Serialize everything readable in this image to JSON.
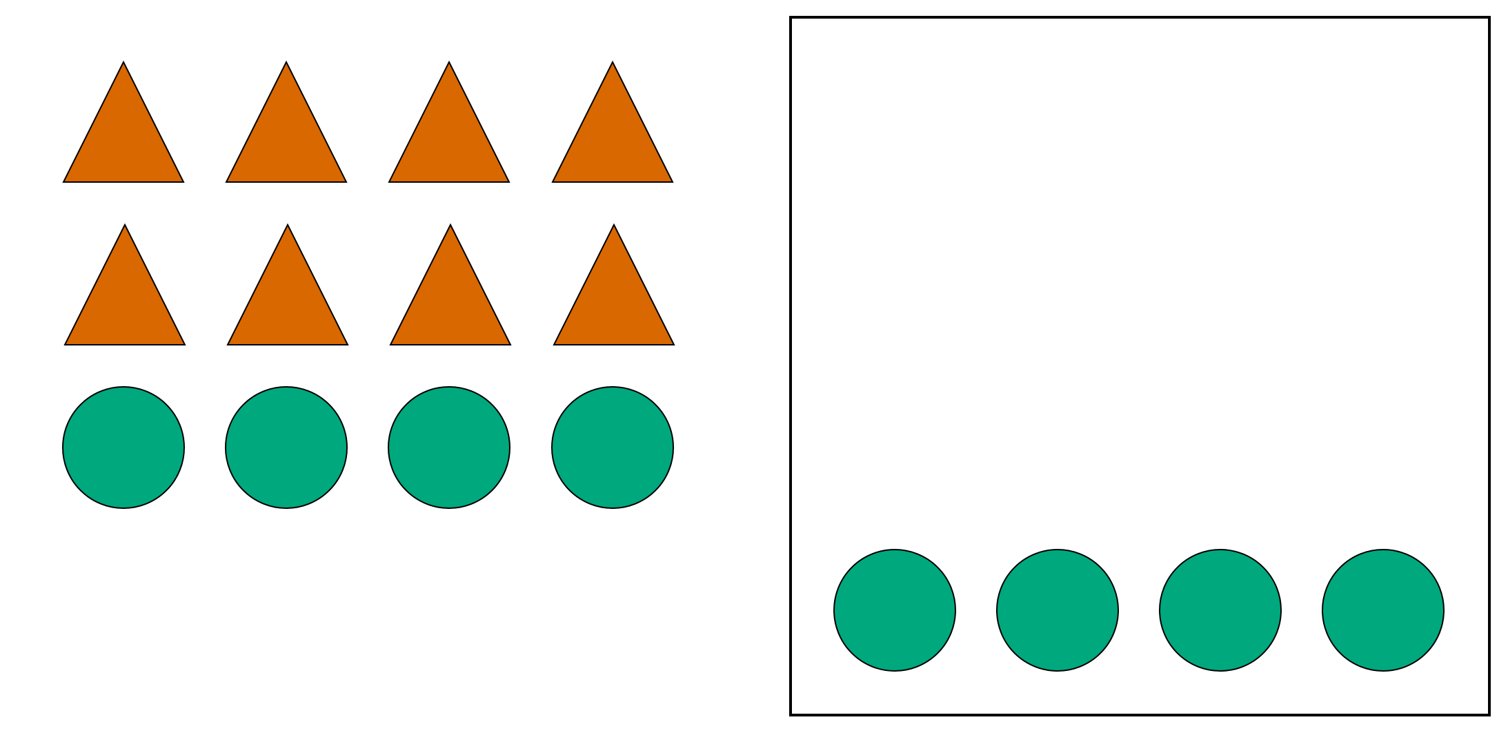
{
  "colors": {
    "background": "#ffffff",
    "triangle_fill": "#d96800",
    "circle_fill": "#00a87e",
    "outline": "#000000"
  },
  "left_group": {
    "rows": [
      {
        "shape": "triangle",
        "count": 4
      },
      {
        "shape": "triangle",
        "count": 4
      },
      {
        "shape": "circle",
        "count": 4
      }
    ]
  },
  "right_box": {
    "rows": [
      {
        "shape": "circle",
        "count": 4
      }
    ]
  }
}
